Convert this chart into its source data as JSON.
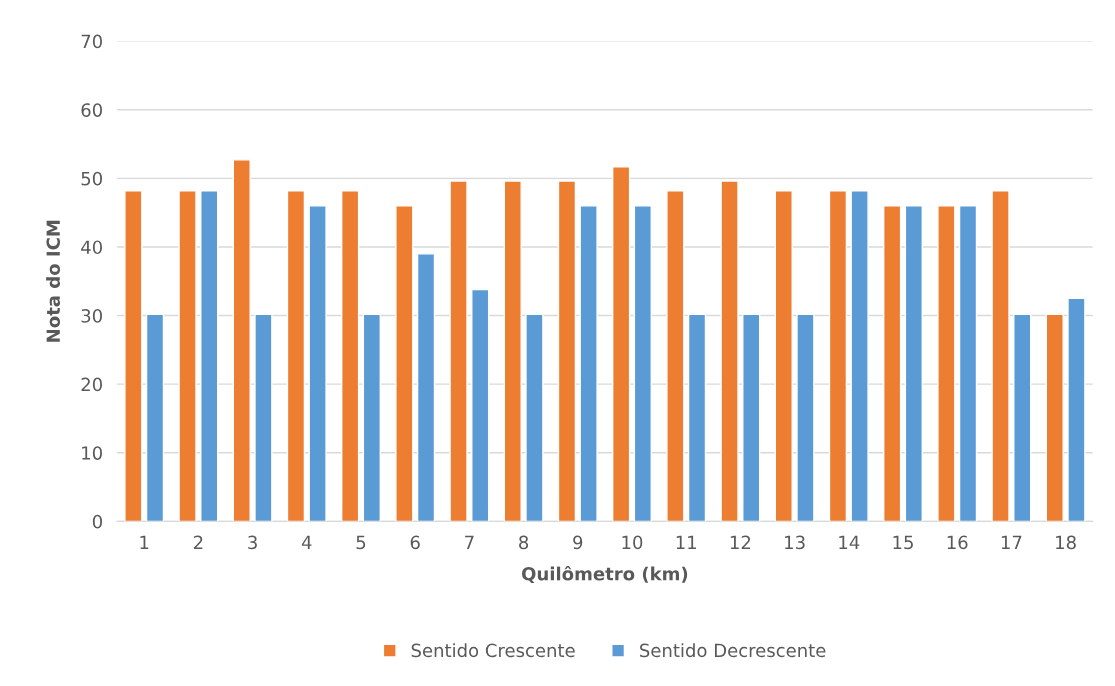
{
  "chart_data": {
    "type": "bar",
    "xlabel": "Quilômetro (km)",
    "ylabel": "Nota do ICM",
    "categories": [
      "1",
      "2",
      "3",
      "4",
      "5",
      "6",
      "7",
      "8",
      "9",
      "10",
      "11",
      "12",
      "13",
      "14",
      "15",
      "16",
      "17",
      "18"
    ],
    "series": [
      {
        "name": "Sentido Crescente",
        "color": "#ed7d31",
        "values": [
          48.2,
          48.2,
          52.7,
          48.2,
          48.2,
          46,
          49.6,
          49.6,
          49.6,
          51.7,
          48.2,
          49.6,
          48.2,
          48.2,
          46,
          46,
          48.2,
          30.2
        ]
      },
      {
        "name": "Sentido Decrescente",
        "color": "#5b9bd5",
        "values": [
          30.2,
          48.2,
          30.2,
          46,
          30.2,
          39,
          33.8,
          30.2,
          46,
          46,
          30.2,
          30.2,
          30.2,
          48.2,
          46,
          46,
          30.2,
          32.5
        ]
      }
    ],
    "ylim": [
      0,
      70
    ],
    "yticks": [
      0,
      10,
      20,
      30,
      40,
      50,
      60,
      70
    ],
    "grid": "y",
    "legend": "bottom"
  }
}
